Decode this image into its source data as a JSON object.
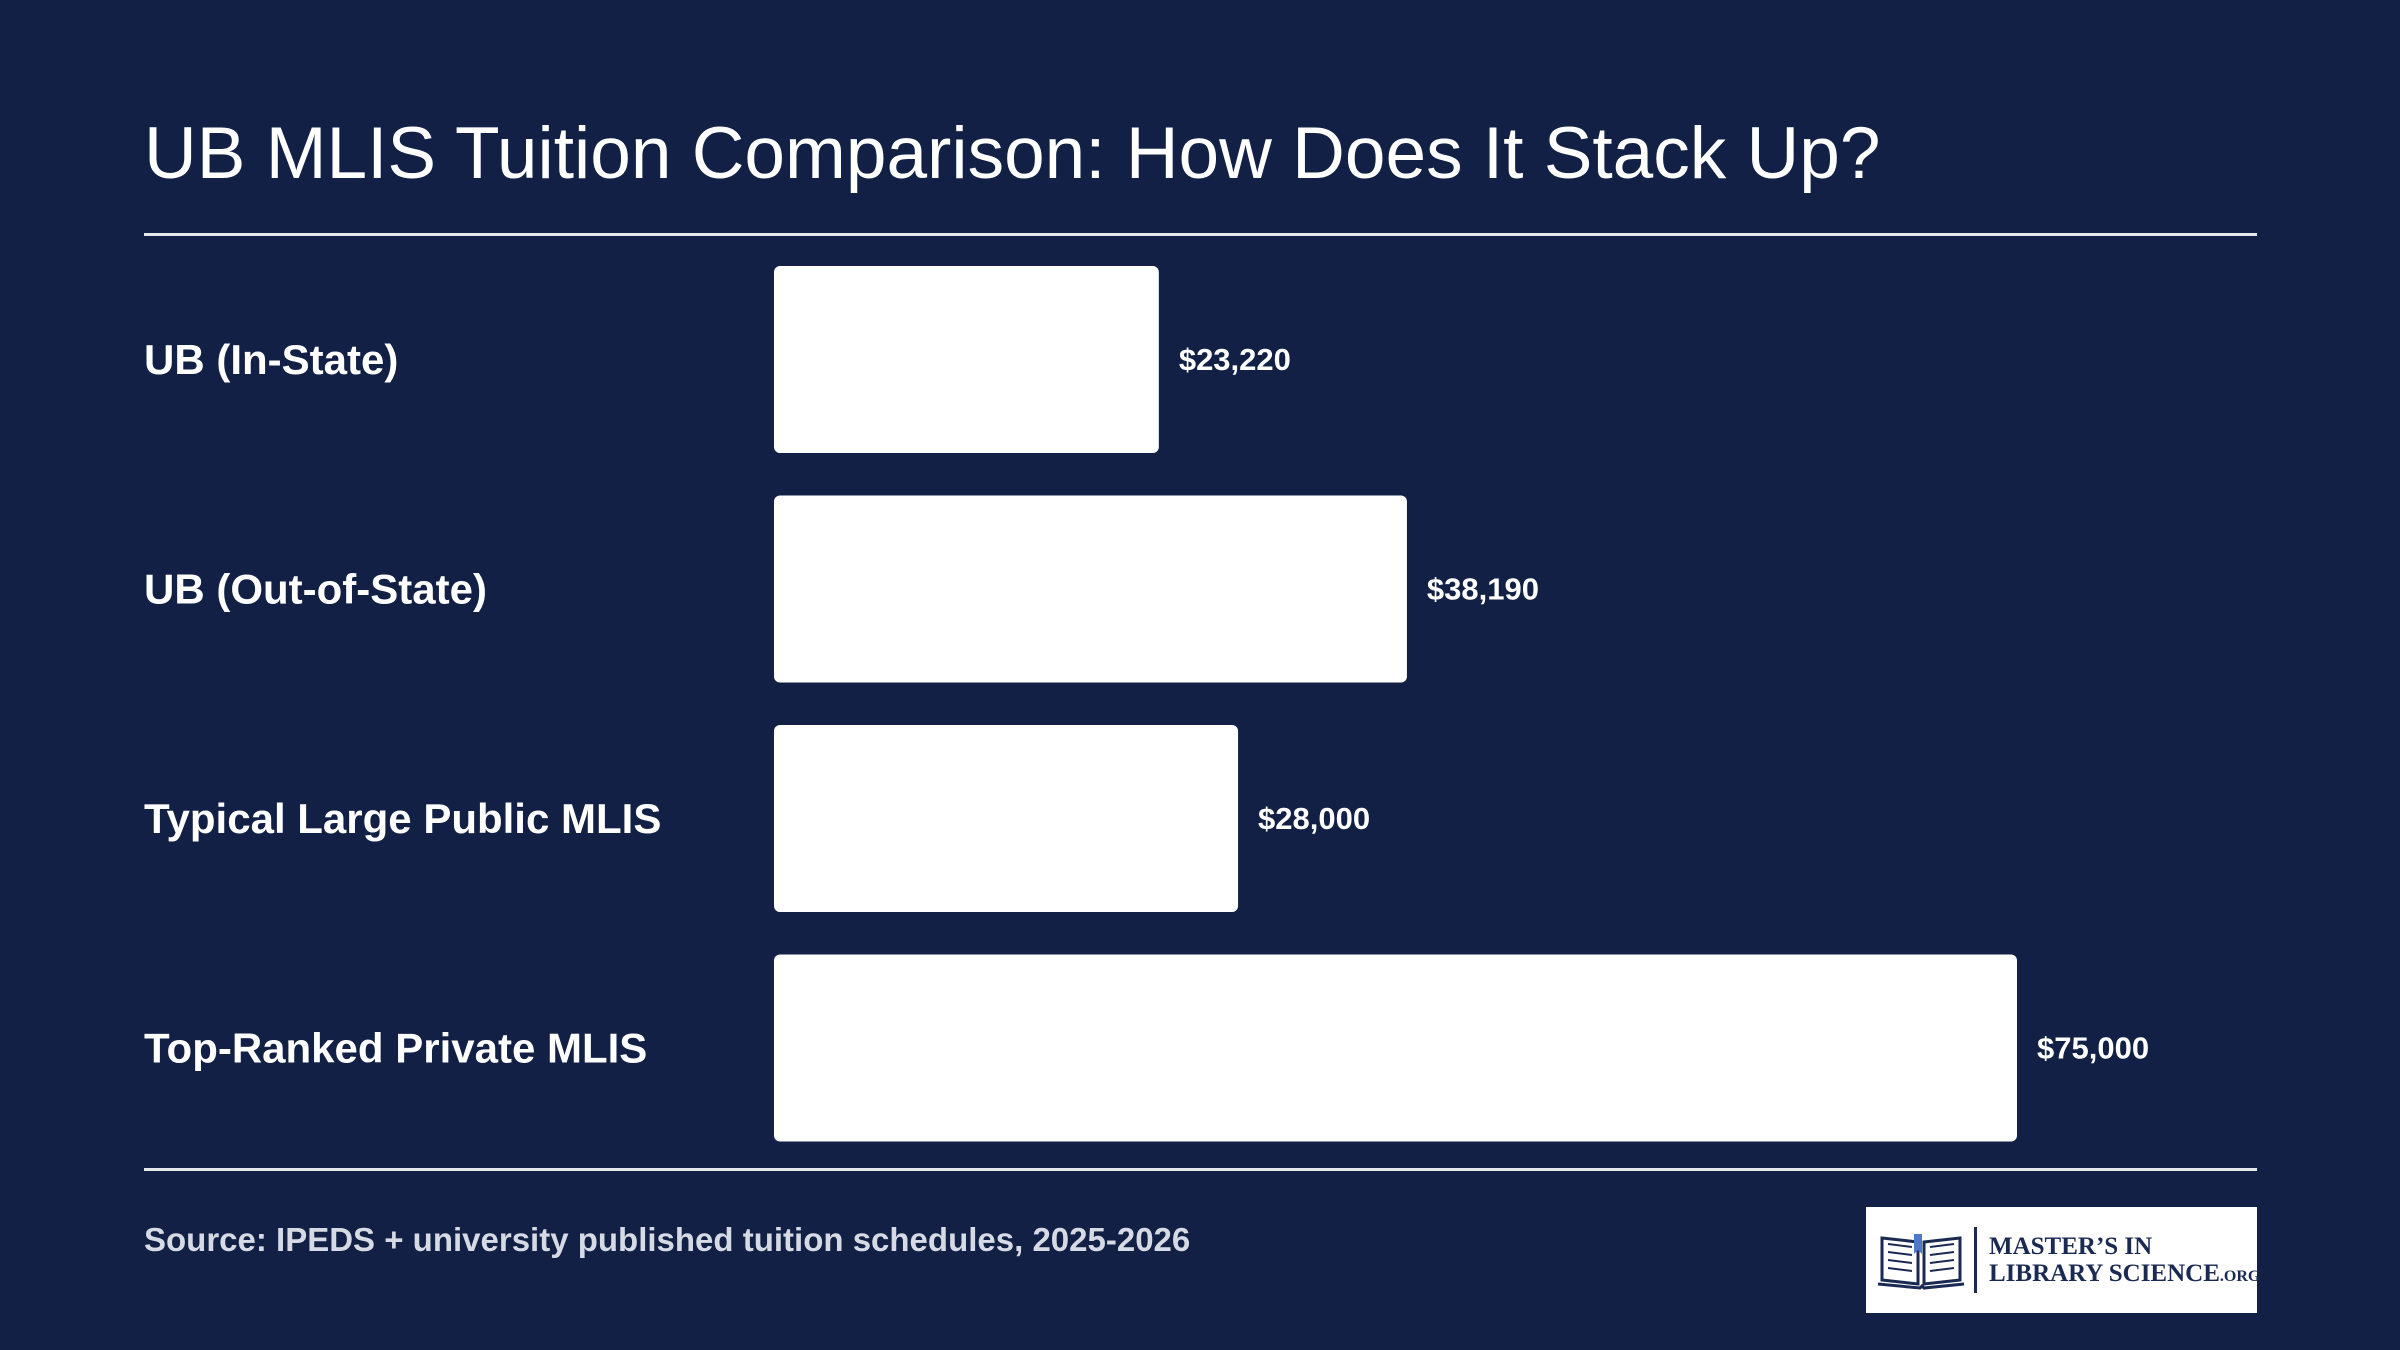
{
  "title": "UB MLIS Tuition Comparison: How Does It Stack Up?",
  "chart_data": {
    "type": "bar",
    "orientation": "horizontal",
    "categories": [
      "UB (In-State)",
      "UB (Out-of-State)",
      "Typical Large Public MLIS",
      "Top-Ranked Private MLIS"
    ],
    "values": [
      23220,
      38190,
      28000,
      75000
    ],
    "value_labels": [
      "$23,220",
      "$38,190",
      "$28,000",
      "$75,000"
    ],
    "title": "UB MLIS Tuition Comparison: How Does It Stack Up?",
    "xlabel": "",
    "ylabel": "",
    "grid": false,
    "legend": "none"
  },
  "colors": {
    "background": "#112044",
    "bar": "#ffffff",
    "text": "#ffffff",
    "source_text": "#d6dae4",
    "logo_ink": "#1b2a52"
  },
  "source": "Source: IPEDS + university published tuition schedules, 2025-2026",
  "logo": {
    "icon": "open-book-icon",
    "line1": "MASTER’S IN",
    "line2": "LIBRARY SCIENCE",
    "suffix": ".ORG"
  }
}
